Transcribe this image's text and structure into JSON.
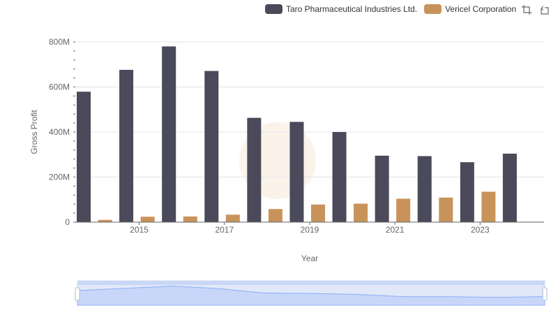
{
  "chart_data": {
    "type": "bar",
    "categories": [
      "2014",
      "2015",
      "2016",
      "2017",
      "2018",
      "2019",
      "2020",
      "2021",
      "2022",
      "2023",
      "2024"
    ],
    "x_tick_labels": [
      "2015",
      "2017",
      "2019",
      "2021",
      "2023"
    ],
    "y_tick_labels": [
      "0",
      "200M",
      "400M",
      "600M",
      "800M"
    ],
    "ylim": [
      0,
      800000000
    ],
    "xlabel": "Year",
    "ylabel": "Gross Profit",
    "series": [
      {
        "name": "Taro Pharmaceutical Industries Ltd.",
        "color": "#4a4a5a",
        "values": [
          579000000,
          676000000,
          780000000,
          671000000,
          463000000,
          445000000,
          400000000,
          295000000,
          293000000,
          266000000,
          304000000
        ]
      },
      {
        "name": "Vericel Corporation",
        "color": "#c8935a",
        "values": [
          10000000,
          24000000,
          25000000,
          33000000,
          58000000,
          78000000,
          82000000,
          104000000,
          109000000,
          135000000,
          0
        ]
      }
    ],
    "grid": true,
    "legend_position": "top-right"
  },
  "toolbox": {
    "zoom_icon": "zoom-select-icon",
    "reset_icon": "zoom-reset-icon"
  },
  "datazoom": {
    "range_start_pct": 0,
    "range_end_pct": 100,
    "fill_color": "#d6e1fb",
    "line_color": "#8fb0f7"
  }
}
